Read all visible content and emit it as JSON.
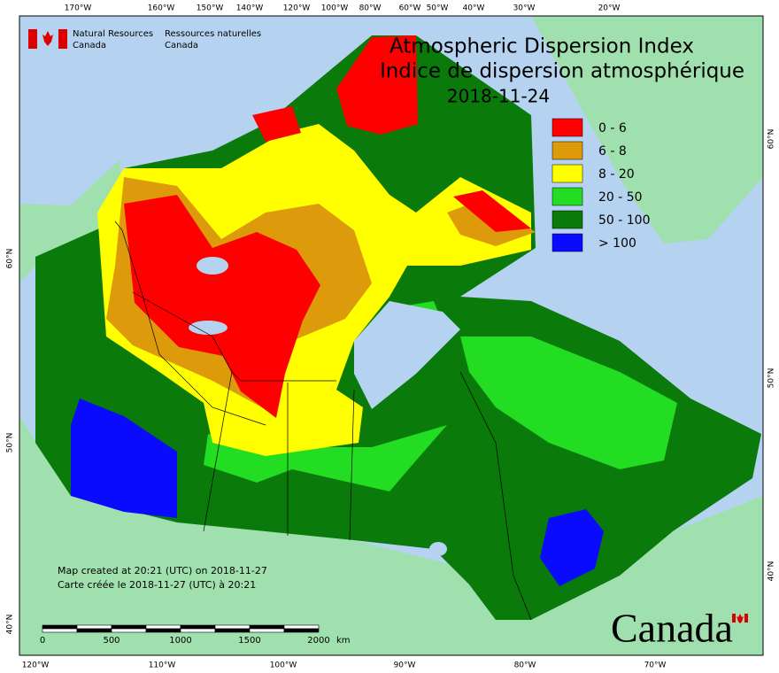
{
  "header": {
    "agency": [
      "Natural Resources",
      "Canada"
    ],
    "agence": [
      "Ressources naturelles",
      "Canada"
    ]
  },
  "title": [
    "Atmospheric Dispersion Index",
    "Indice de dispersion atmosphérique",
    "2018-11-24"
  ],
  "legend": [
    {
      "label": "0 - 6",
      "color": "#ff0000"
    },
    {
      "label": "6 - 8",
      "color": "#dd9a0a"
    },
    {
      "label": "8 - 20",
      "color": "#ffff00"
    },
    {
      "label": "20 - 50",
      "color": "#22dd22"
    },
    {
      "label": "50 - 100",
      "color": "#0a7a0a"
    },
    {
      "label": "> 100",
      "color": "#0a0aff"
    }
  ],
  "graticule": {
    "top": [
      "170°W",
      "160°W",
      "150°W",
      "140°W",
      "120°W",
      "100°W",
      "80°W",
      "60°W",
      "50°W",
      "40°W",
      "30°W",
      "20°W"
    ],
    "bottom": [
      "120°W",
      "110°W",
      "100°W",
      "90°W",
      "80°W",
      "70°W"
    ],
    "left": [
      "60°N",
      "50°N",
      "40°N"
    ],
    "right": [
      "60°N",
      "50°N",
      "40°N"
    ]
  },
  "notes": [
    "Map created at 20:21 (UTC) on 2018-11-27",
    "Carte créée le 2018-11-27 (UTC) à 20:21"
  ],
  "scale_bar": {
    "labels": [
      0,
      500,
      1000,
      1500,
      2000
    ],
    "unit": "km"
  },
  "wordmark": "Canada"
}
